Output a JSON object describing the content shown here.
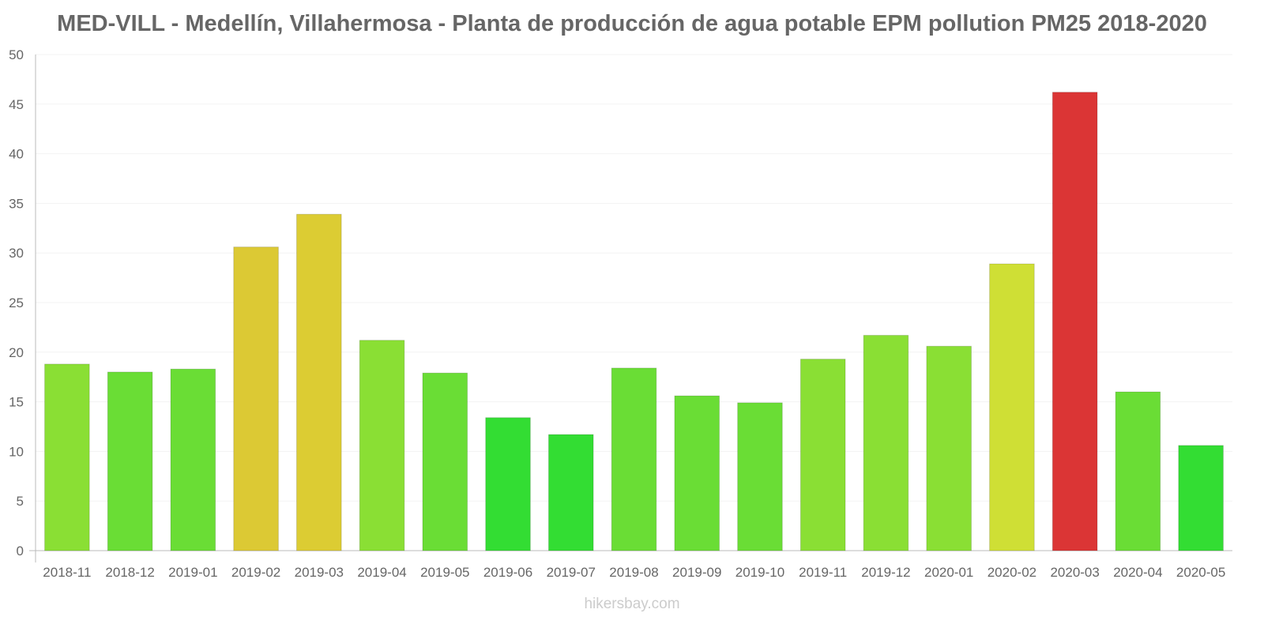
{
  "chart_data": {
    "type": "bar",
    "title": "MED-VILL - Medellín, Villahermosa - Planta de producción de agua potable EPM pollution PM25 2018-2020",
    "xlabel": "",
    "ylabel": "",
    "ylim": [
      0,
      50
    ],
    "yticks": [
      0,
      5,
      10,
      15,
      20,
      25,
      30,
      35,
      40,
      45,
      50
    ],
    "grid": true,
    "categories": [
      "2018-11",
      "2018-12",
      "2019-01",
      "2019-02",
      "2019-03",
      "2019-04",
      "2019-05",
      "2019-06",
      "2019-07",
      "2019-08",
      "2019-09",
      "2019-10",
      "2019-11",
      "2019-12",
      "2020-01",
      "2020-02",
      "2020-03",
      "2020-04",
      "2020-05"
    ],
    "values": [
      18.8,
      18.0,
      18.3,
      30.6,
      33.9,
      21.2,
      17.9,
      13.4,
      11.7,
      18.4,
      15.6,
      14.9,
      19.3,
      21.7,
      20.6,
      28.9,
      46.2,
      16.0,
      10.6
    ],
    "colors": [
      "#8adf34",
      "#6add35",
      "#6add35",
      "#dcc934",
      "#dccc33",
      "#8adf34",
      "#6add35",
      "#33dd33",
      "#33dd33",
      "#6add35",
      "#6add35",
      "#6add35",
      "#8adf34",
      "#8adf34",
      "#8adf34",
      "#cfdf35",
      "#db3535",
      "#6add35",
      "#33dd33"
    ]
  },
  "watermark": "hikersbay.com"
}
